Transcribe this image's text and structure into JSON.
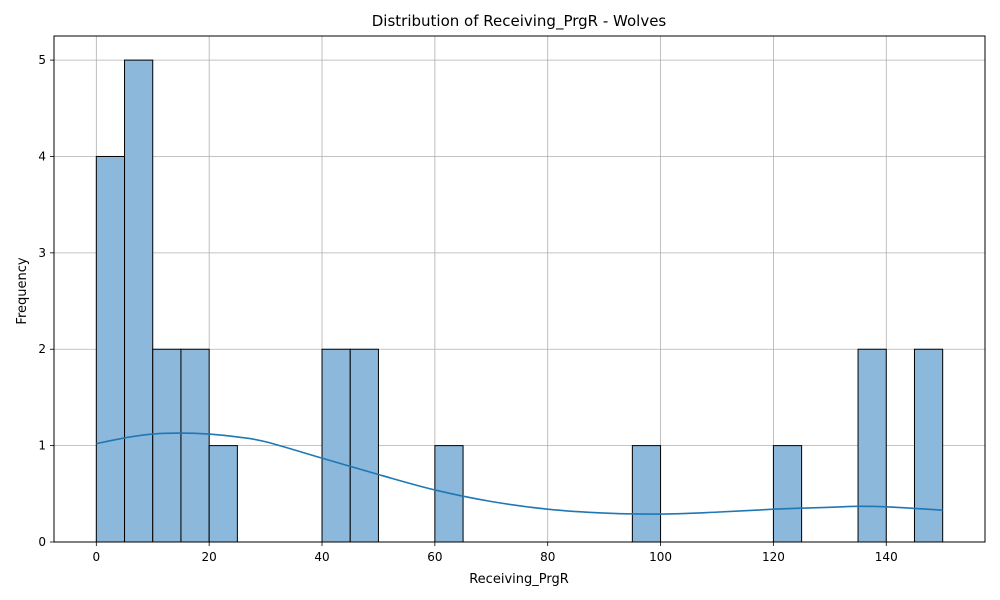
{
  "chart_data": {
    "type": "bar",
    "title": "Distribution of Receiving_PrgR - Wolves",
    "xlabel": "Receiving_PrgR",
    "ylabel": "Frequency",
    "xlim": [
      -7.5,
      157.5
    ],
    "ylim": [
      0,
      5.25
    ],
    "xticks": [
      0,
      20,
      40,
      60,
      80,
      100,
      120,
      140
    ],
    "yticks": [
      0,
      1,
      2,
      3,
      4,
      5
    ],
    "grid": true,
    "bar_color": "#8cb8dc",
    "bar_edge_color": "#000000",
    "line_color": "#1f77b4",
    "bins": [
      {
        "start": 0,
        "end": 5,
        "count": 4
      },
      {
        "start": 5,
        "end": 10,
        "count": 5
      },
      {
        "start": 10,
        "end": 15,
        "count": 2
      },
      {
        "start": 15,
        "end": 20,
        "count": 2
      },
      {
        "start": 20,
        "end": 25,
        "count": 1
      },
      {
        "start": 40,
        "end": 45,
        "count": 2
      },
      {
        "start": 45,
        "end": 50,
        "count": 2
      },
      {
        "start": 60,
        "end": 65,
        "count": 1
      },
      {
        "start": 95,
        "end": 100,
        "count": 1
      },
      {
        "start": 120,
        "end": 125,
        "count": 1
      },
      {
        "start": 135,
        "end": 140,
        "count": 2
      },
      {
        "start": 145,
        "end": 150,
        "count": 2
      }
    ],
    "kde": {
      "x": [
        0,
        5,
        10,
        15,
        20,
        25,
        30,
        40,
        50,
        60,
        70,
        80,
        90,
        100,
        110,
        120,
        130,
        135,
        140,
        150
      ],
      "y": [
        1.02,
        1.08,
        1.12,
        1.13,
        1.12,
        1.09,
        1.04,
        0.87,
        0.7,
        0.54,
        0.42,
        0.34,
        0.3,
        0.29,
        0.31,
        0.34,
        0.36,
        0.37,
        0.365,
        0.33
      ]
    }
  }
}
